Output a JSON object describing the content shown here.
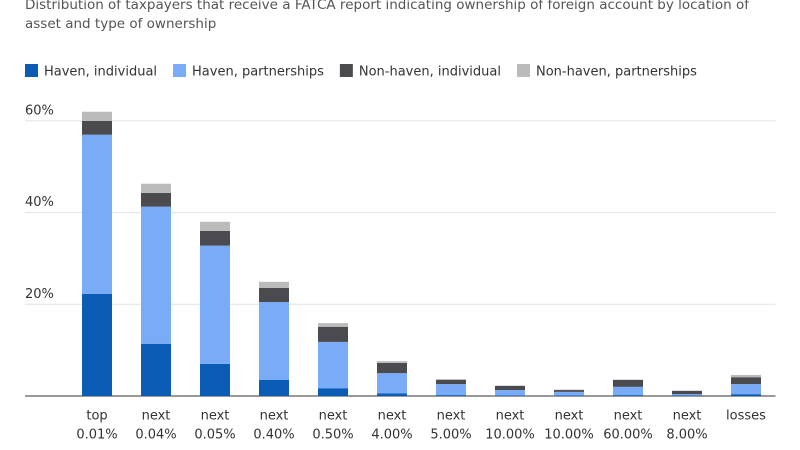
{
  "chart_data": {
    "type": "stacked_bar",
    "title": "Distribution of taxpayers that receive a FATCA report indicating ownership of foreign account by location of asset and type of ownership",
    "categories": [
      [
        "top",
        "0.01%"
      ],
      [
        "next",
        "0.04%"
      ],
      [
        "next",
        "0.05%"
      ],
      [
        "next",
        "0.40%"
      ],
      [
        "next",
        "0.50%"
      ],
      [
        "next",
        "4.00%"
      ],
      [
        "next",
        "5.00%"
      ],
      [
        "next",
        "10.00%"
      ],
      [
        "next",
        "10.00%"
      ],
      [
        "next",
        "60.00%"
      ],
      [
        "next",
        "8.00%"
      ],
      [
        "losses",
        ""
      ]
    ],
    "series": [
      {
        "name": "Haven, individual",
        "color": "#0b5cb5",
        "values": [
          22.3,
          11.4,
          7.0,
          3.5,
          1.7,
          0.6,
          0.2,
          0.1,
          0.1,
          0.2,
          0.1,
          0.4
        ]
      },
      {
        "name": "Haven, partnerships",
        "color": "#79abf7",
        "values": [
          34.7,
          29.9,
          25.8,
          17.0,
          10.1,
          4.4,
          2.4,
          1.2,
          0.8,
          1.8,
          0.3,
          2.2
        ]
      },
      {
        "name": "Non-haven, individual",
        "color": "#4a4a4f",
        "values": [
          3.0,
          3.0,
          3.2,
          3.1,
          3.3,
          2.2,
          0.9,
          0.9,
          0.4,
          1.5,
          0.7,
          1.5
        ]
      },
      {
        "name": "Non-haven, partnerships",
        "color": "#bbbbbb",
        "values": [
          2.0,
          2.0,
          2.0,
          1.3,
          0.8,
          0.4,
          0.2,
          0.1,
          0.1,
          0.1,
          0.1,
          0.5
        ]
      }
    ],
    "ylim": [
      0,
      65
    ],
    "yticks": [
      {
        "value": 20,
        "label": "20%"
      },
      {
        "value": 40,
        "label": "40%"
      },
      {
        "value": 60,
        "label": "60%"
      }
    ],
    "grid": true
  }
}
